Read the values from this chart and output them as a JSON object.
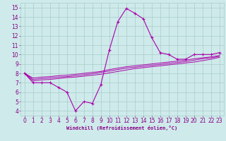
{
  "xlabel": "Windchill (Refroidissement éolien,°C)",
  "background_color": "#ceeaea",
  "line_color": "#aa00aa",
  "x_data": [
    0,
    1,
    2,
    3,
    4,
    5,
    6,
    7,
    8,
    9,
    10,
    11,
    12,
    13,
    14,
    15,
    16,
    17,
    18,
    19,
    20,
    21,
    22,
    23
  ],
  "y_main": [
    8.0,
    7.0,
    7.0,
    7.0,
    6.5,
    6.0,
    4.0,
    5.0,
    4.8,
    6.8,
    10.5,
    13.5,
    14.9,
    14.4,
    13.8,
    11.8,
    10.2,
    10.0,
    9.5,
    9.5,
    10.0,
    10.0,
    10.0,
    10.2
  ],
  "y_line1": [
    8.0,
    7.2,
    7.3,
    7.35,
    7.45,
    7.55,
    7.6,
    7.7,
    7.8,
    7.9,
    8.05,
    8.2,
    8.35,
    8.5,
    8.6,
    8.7,
    8.8,
    8.9,
    9.0,
    9.1,
    9.2,
    9.35,
    9.5,
    9.7
  ],
  "y_line2": [
    8.0,
    7.35,
    7.45,
    7.5,
    7.6,
    7.65,
    7.75,
    7.85,
    7.95,
    8.1,
    8.25,
    8.4,
    8.55,
    8.65,
    8.75,
    8.85,
    8.95,
    9.05,
    9.15,
    9.25,
    9.4,
    9.55,
    9.65,
    9.8
  ],
  "y_line3": [
    8.0,
    7.5,
    7.6,
    7.65,
    7.75,
    7.8,
    7.9,
    8.0,
    8.1,
    8.2,
    8.4,
    8.55,
    8.7,
    8.8,
    8.9,
    9.0,
    9.1,
    9.2,
    9.3,
    9.4,
    9.55,
    9.65,
    9.75,
    9.9
  ],
  "ylim": [
    3.5,
    15.5
  ],
  "xlim": [
    -0.5,
    23.5
  ],
  "yticks": [
    4,
    5,
    6,
    7,
    8,
    9,
    10,
    11,
    12,
    13,
    14,
    15
  ],
  "xticks": [
    0,
    1,
    2,
    3,
    4,
    5,
    6,
    7,
    8,
    9,
    10,
    11,
    12,
    13,
    14,
    15,
    16,
    17,
    18,
    19,
    20,
    21,
    22,
    23
  ],
  "grid_color": "#aacccc",
  "tick_color": "#880088",
  "xlabel_fontsize": 5.0,
  "tick_fontsize": 5.5,
  "marker": "+"
}
